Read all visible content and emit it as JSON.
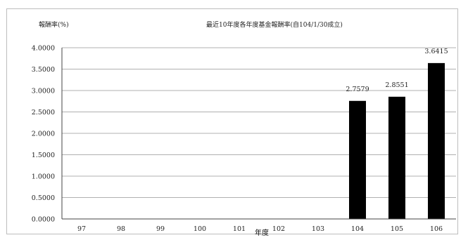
{
  "chart_data": {
    "type": "bar",
    "title": "最近10年度各年度基金報酬率(自104/1/30成立)",
    "ylabel": "報酬率(%)",
    "xlabel": "年度",
    "categories": [
      "97",
      "98",
      "99",
      "100",
      "101",
      "102",
      "103",
      "104",
      "105",
      "106"
    ],
    "values": [
      null,
      null,
      null,
      null,
      null,
      null,
      null,
      2.7579,
      2.8551,
      3.6415
    ],
    "value_labels": [
      "",
      "",
      "",
      "",
      "",
      "",
      "",
      "2.7579",
      "2.8551",
      "3.6415"
    ],
    "ylim": [
      0,
      4
    ],
    "yticks": [
      "0.0000",
      "0.5000",
      "1.0000",
      "1.5000",
      "2.0000",
      "2.5000",
      "3.0000",
      "3.5000",
      "4.0000"
    ],
    "grid": true,
    "legend": "none",
    "bar_color": "#000000"
  }
}
